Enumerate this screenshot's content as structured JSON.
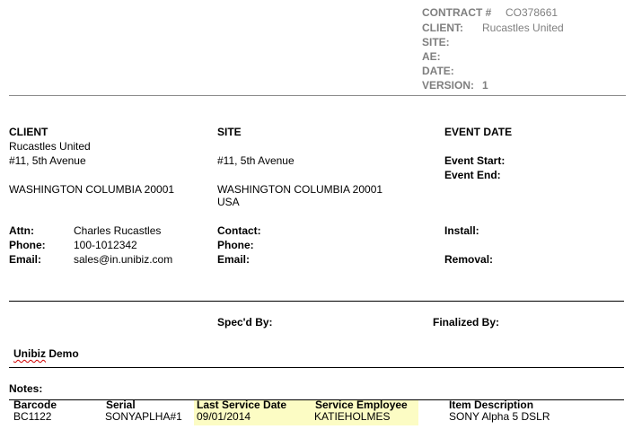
{
  "header": {
    "contract_label": "CONTRACT #",
    "contract_value": "CO378661",
    "client_label": "CLIENT:",
    "client_value": "Rucastles United",
    "site_label": "SITE:",
    "ae_label": "AE:",
    "date_label": "DATE:",
    "version_label": "VERSION:",
    "version_value": "1"
  },
  "client": {
    "heading": "CLIENT",
    "name": "Rucastles United",
    "address1": "#11, 5th Avenue",
    "address2": "WASHINGTON COLUMBIA 20001",
    "attn_label": "Attn:",
    "attn_value": "Charles Rucastles",
    "phone_label": "Phone:",
    "phone_value": "100-1012342",
    "email_label": "Email:",
    "email_value": "sales@in.unibiz.com"
  },
  "site": {
    "heading": "SITE",
    "address1": "#11, 5th Avenue",
    "address2": "WASHINGTON COLUMBIA 20001",
    "country": "USA",
    "contact_label": "Contact:",
    "phone_label": "Phone:",
    "email_label": "Email:"
  },
  "event": {
    "heading": "EVENT DATE",
    "start_label": "Event Start:",
    "end_label": "Event End:",
    "install_label": "Install:",
    "removal_label": "Removal:"
  },
  "specd_label": "Spec'd By:",
  "finalized_label": "Finalized By:",
  "company": {
    "name_part1": "Unibiz",
    "name_part2": "Demo"
  },
  "notes_label": "Notes:",
  "items": {
    "columns": [
      "Barcode",
      "Serial",
      "Last Service Date",
      "Service Employee",
      "Item Description"
    ],
    "rows": [
      [
        "BC1122",
        "SONYAPLHA#1",
        "09/01/2014",
        "KATIEHOLMES",
        "SONY Alpha 5 DSLR"
      ]
    ],
    "highlight_color": "#fcfcc4"
  }
}
